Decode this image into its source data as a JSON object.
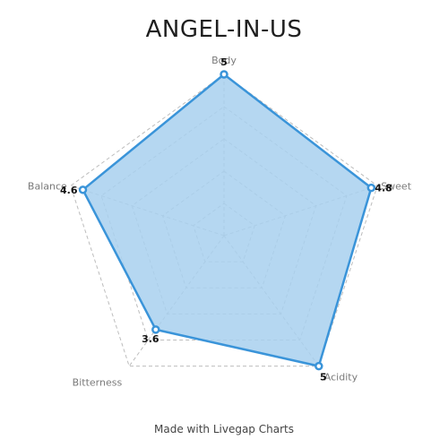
{
  "chart_data": {
    "type": "radar",
    "title": "ANGEL-IN-US",
    "categories": [
      "Body",
      "Sweet",
      "Acidity",
      "Bitterness",
      "Balance"
    ],
    "values": [
      5,
      4.8,
      5,
      3.6,
      4.6
    ],
    "range": [
      0,
      5
    ],
    "gridlines": true,
    "colors": {
      "fill": "#a8d0ef",
      "stroke": "#3a94d9",
      "grid": "#bdbdbd"
    }
  },
  "footer": {
    "credit": "Made with Livegap Charts"
  }
}
